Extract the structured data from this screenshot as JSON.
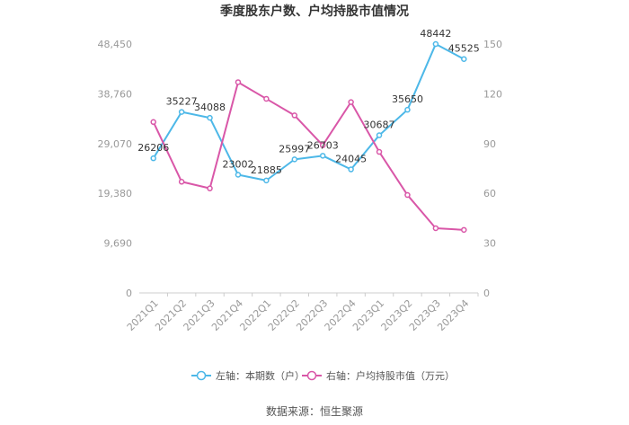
{
  "chart_data": {
    "type": "line",
    "title": "季度股东户数、户均持股市值情况",
    "categories": [
      "2021Q1",
      "2021Q2",
      "2021Q3",
      "2021Q4",
      "2022Q1",
      "2022Q2",
      "2022Q3",
      "2022Q4",
      "2023Q1",
      "2023Q2",
      "2023Q3",
      "2023Q4"
    ],
    "left_axis": {
      "ylim": [
        0,
        48450
      ],
      "ticks": [
        "0",
        "9,690",
        "19,380",
        "29,070",
        "38,760",
        "48,450"
      ]
    },
    "right_axis": {
      "ylim": [
        0,
        150
      ],
      "ticks": [
        "0",
        "30",
        "60",
        "90",
        "120",
        "150"
      ]
    },
    "series": [
      {
        "name": "左轴：本期数（户）",
        "axis": "left",
        "color": "#4db8e8",
        "values": [
          26206,
          35227,
          34088,
          23002,
          21885,
          25997,
          26703,
          24045,
          30687,
          35650,
          48442,
          45525
        ],
        "labels": [
          "26206",
          "35227",
          "34088",
          "23002",
          "21885",
          "25997",
          "26703",
          "24045",
          "30687",
          "35650",
          "48442",
          "45525"
        ]
      },
      {
        "name": "右轴：户均持股市值（万元）",
        "axis": "right",
        "color": "#d957a8",
        "values": [
          103,
          67,
          63,
          127,
          117,
          107,
          89,
          115,
          85,
          59,
          39,
          38
        ]
      }
    ],
    "grid": false,
    "legend": "bottom"
  },
  "footer": {
    "source": "数据来源：恒生聚源"
  }
}
